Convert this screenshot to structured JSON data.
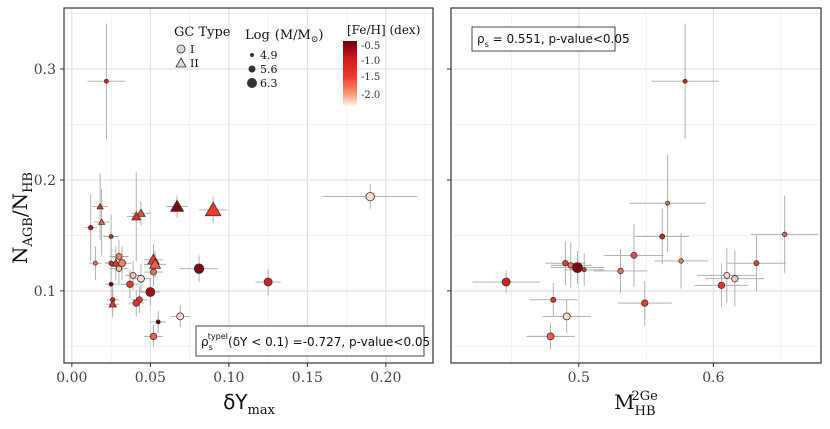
{
  "chart_data": [
    {
      "type": "scatter",
      "id": "left",
      "xlabel": "δY",
      "xlabel_sub": "max",
      "ylabel": "N",
      "ylabel_sub1": "AGB",
      "ylabel_mid": "/N",
      "ylabel_sub2": "HB",
      "xlim": [
        -0.005,
        0.23
      ],
      "ylim": [
        0.035,
        0.355
      ],
      "xticks": [
        "0.00",
        "0.05",
        "0.10",
        "0.15",
        "0.20"
      ],
      "xtick_values": [
        0,
        0.05,
        0.1,
        0.15,
        0.2
      ],
      "yticks": [
        "0.1",
        "0.2",
        "0.3"
      ],
      "ytick_values": [
        0.1,
        0.2,
        0.3
      ],
      "grid": true,
      "annotation": {
        "rho": "ρ",
        "rho_sub": "s",
        "rho_sup": "typeI",
        "text": "(δY < 0.1) =-0.727, p-value<0.05"
      },
      "legend": {
        "gc_title": "GC Type",
        "gc_items": [
          "I",
          "II"
        ],
        "mass_title": "Log",
        "mass_unit": "(M/M",
        "mass_unit_sun": "⊙",
        "mass_unit_close": ")",
        "mass_items": [
          "4.9",
          "5.6",
          "6.3"
        ],
        "feh_title": "[Fe/H] (dex)",
        "feh_ticks": [
          "-0.5",
          "-1.0",
          "-1.5",
          "-2.0"
        ],
        "placement": "top"
      },
      "points": [
        {
          "x": 0.022,
          "y": 0.289,
          "type": "I",
          "logm": 4.9,
          "feh": -1.1,
          "xerr": 0.012,
          "yerr": 0.052
        },
        {
          "x": 0.19,
          "y": 0.185,
          "type": "I",
          "logm": 5.8,
          "feh": -2.3,
          "xerr": 0.03,
          "yerr": 0.011
        },
        {
          "x": 0.09,
          "y": 0.173,
          "type": "II",
          "logm": 6.4,
          "feh": -1.5,
          "xerr": 0.009,
          "yerr": 0.012
        },
        {
          "x": 0.067,
          "y": 0.176,
          "type": "II",
          "logm": 6.0,
          "feh": -0.6,
          "xerr": 0.007,
          "yerr": 0.01
        },
        {
          "x": 0.044,
          "y": 0.17,
          "type": "II",
          "logm": 5.3,
          "feh": -1.6,
          "xerr": 0.006,
          "yerr": 0.011
        },
        {
          "x": 0.041,
          "y": 0.167,
          "type": "II",
          "logm": 5.4,
          "feh": -1.3,
          "xerr": 0.006,
          "yerr": 0.04
        },
        {
          "x": 0.019,
          "y": 0.162,
          "type": "II",
          "logm": 5.0,
          "feh": -1.7,
          "xerr": 0.005,
          "yerr": 0.03
        },
        {
          "x": 0.018,
          "y": 0.176,
          "type": "II",
          "logm": 5.0,
          "feh": -1.3,
          "xerr": 0.005,
          "yerr": 0.03
        },
        {
          "x": 0.012,
          "y": 0.157,
          "type": "I",
          "logm": 5.0,
          "feh": -0.9,
          "xerr": 0.004,
          "yerr": 0.03
        },
        {
          "x": 0.025,
          "y": 0.149,
          "type": "I",
          "logm": 4.9,
          "feh": -1.2,
          "xerr": 0.005,
          "yerr": 0.02
        },
        {
          "x": 0.052,
          "y": 0.128,
          "type": "II",
          "logm": 5.8,
          "feh": -1.5,
          "xerr": 0.006,
          "yerr": 0.014
        },
        {
          "x": 0.053,
          "y": 0.124,
          "type": "II",
          "logm": 5.7,
          "feh": -1.7,
          "xerr": 0.007,
          "yerr": 0.012
        },
        {
          "x": 0.028,
          "y": 0.125,
          "type": "II",
          "logm": 5.3,
          "feh": -1.4,
          "xerr": 0.007,
          "yerr": 0.015
        },
        {
          "x": 0.015,
          "y": 0.125,
          "type": "I",
          "logm": 4.9,
          "feh": -1.8,
          "xerr": 0.004,
          "yerr": 0.015
        },
        {
          "x": 0.03,
          "y": 0.131,
          "type": "I",
          "logm": 5.3,
          "feh": -1.9,
          "xerr": 0.006,
          "yerr": 0.015
        },
        {
          "x": 0.032,
          "y": 0.125,
          "type": "I",
          "logm": 5.5,
          "feh": -1.9,
          "xerr": 0.006,
          "yerr": 0.015
        },
        {
          "x": 0.03,
          "y": 0.12,
          "type": "I",
          "logm": 5.2,
          "feh": -2.2,
          "xerr": 0.006,
          "yerr": 0.015
        },
        {
          "x": 0.025,
          "y": 0.125,
          "type": "I",
          "logm": 5.0,
          "feh": -1.2,
          "xerr": 0.004,
          "yerr": 0.012
        },
        {
          "x": 0.039,
          "y": 0.114,
          "type": "I",
          "logm": 5.3,
          "feh": -2.2,
          "xerr": 0.005,
          "yerr": 0.013
        },
        {
          "x": 0.044,
          "y": 0.111,
          "type": "I",
          "logm": 5.5,
          "feh": -2.3,
          "xerr": 0.006,
          "yerr": 0.013
        },
        {
          "x": 0.037,
          "y": 0.106,
          "type": "I",
          "logm": 5.4,
          "feh": -1.5,
          "xerr": 0.006,
          "yerr": 0.013
        },
        {
          "x": 0.052,
          "y": 0.117,
          "type": "I",
          "logm": 5.3,
          "feh": -1.8,
          "xerr": 0.006,
          "yerr": 0.013
        },
        {
          "x": 0.081,
          "y": 0.12,
          "type": "I",
          "logm": 6.0,
          "feh": -0.6,
          "xerr": 0.012,
          "yerr": 0.012
        },
        {
          "x": 0.125,
          "y": 0.108,
          "type": "I",
          "logm": 5.7,
          "feh": -1.1,
          "xerr": 0.008,
          "yerr": 0.012
        },
        {
          "x": 0.05,
          "y": 0.099,
          "type": "I",
          "logm": 5.9,
          "feh": -0.8,
          "xerr": 0.006,
          "yerr": 0.012
        },
        {
          "x": 0.043,
          "y": 0.092,
          "type": "I",
          "logm": 5.3,
          "feh": -1.5,
          "xerr": 0.005,
          "yerr": 0.012
        },
        {
          "x": 0.041,
          "y": 0.089,
          "type": "I",
          "logm": 5.4,
          "feh": -1.4,
          "xerr": 0.005,
          "yerr": 0.012
        },
        {
          "x": 0.025,
          "y": 0.106,
          "type": "I",
          "logm": 4.9,
          "feh": -0.6,
          "xerr": 0.004,
          "yerr": 0.012
        },
        {
          "x": 0.026,
          "y": 0.092,
          "type": "I",
          "logm": 5.0,
          "feh": -1.2,
          "xerr": 0.004,
          "yerr": 0.012
        },
        {
          "x": 0.026,
          "y": 0.088,
          "type": "II",
          "logm": 5.2,
          "feh": -1.4,
          "xerr": 0.004,
          "yerr": 0.012
        },
        {
          "x": 0.055,
          "y": 0.072,
          "type": "I",
          "logm": 4.9,
          "feh": -0.5,
          "xerr": 0.005,
          "yerr": 0.01
        },
        {
          "x": 0.069,
          "y": 0.077,
          "type": "I",
          "logm": 5.5,
          "feh": -2.3,
          "xerr": 0.006,
          "yerr": 0.01
        },
        {
          "x": 0.052,
          "y": 0.059,
          "type": "I",
          "logm": 5.4,
          "feh": -1.7,
          "xerr": 0.006,
          "yerr": 0.01
        }
      ]
    },
    {
      "type": "scatter",
      "id": "right",
      "xlabel": "M",
      "xlabel_sub": "HB",
      "xlabel_sup": "2Ge",
      "xlim": [
        0.405,
        0.68
      ],
      "ylim": [
        0.035,
        0.355
      ],
      "xticks": [
        "0.5",
        "0.6"
      ],
      "xtick_values": [
        0.5,
        0.6
      ],
      "grid": true,
      "annotation": {
        "rho": "ρ",
        "rho_sub": "s",
        "text": " = 0.551, p-value<0.05"
      },
      "points": [
        {
          "x": 0.579,
          "y": 0.289,
          "type": "I",
          "logm": 4.9,
          "feh": -1.1,
          "xerr": 0.025,
          "yerr": 0.052
        },
        {
          "x": 0.566,
          "y": 0.179,
          "type": "I",
          "logm": 4.9,
          "feh": -1.7,
          "xerr": 0.028,
          "yerr": 0.044
        },
        {
          "x": 0.653,
          "y": 0.151,
          "type": "I",
          "logm": 5.0,
          "feh": -1.7,
          "xerr": 0.025,
          "yerr": 0.035
        },
        {
          "x": 0.562,
          "y": 0.149,
          "type": "I",
          "logm": 5.1,
          "feh": -1.1,
          "xerr": 0.02,
          "yerr": 0.025
        },
        {
          "x": 0.541,
          "y": 0.132,
          "type": "I",
          "logm": 5.3,
          "feh": -1.6,
          "xerr": 0.022,
          "yerr": 0.028
        },
        {
          "x": 0.576,
          "y": 0.127,
          "type": "I",
          "logm": 5.0,
          "feh": -1.9,
          "xerr": 0.02,
          "yerr": 0.025
        },
        {
          "x": 0.632,
          "y": 0.125,
          "type": "I",
          "logm": 5.1,
          "feh": -1.5,
          "xerr": 0.022,
          "yerr": 0.025
        },
        {
          "x": 0.49,
          "y": 0.125,
          "type": "I",
          "logm": 5.2,
          "feh": -1.5,
          "xerr": 0.015,
          "yerr": 0.02
        },
        {
          "x": 0.494,
          "y": 0.123,
          "type": "I",
          "logm": 5.2,
          "feh": -1.8,
          "xerr": 0.015,
          "yerr": 0.02
        },
        {
          "x": 0.499,
          "y": 0.121,
          "type": "I",
          "logm": 6.1,
          "feh": -0.6,
          "xerr": 0.02,
          "yerr": 0.015
        },
        {
          "x": 0.504,
          "y": 0.119,
          "type": "I",
          "logm": 4.9,
          "feh": -1.3,
          "xerr": 0.015,
          "yerr": 0.015
        },
        {
          "x": 0.531,
          "y": 0.118,
          "type": "I",
          "logm": 5.2,
          "feh": -1.8,
          "xerr": 0.02,
          "yerr": 0.02
        },
        {
          "x": 0.61,
          "y": 0.114,
          "type": "I",
          "logm": 5.3,
          "feh": -2.3,
          "xerr": 0.022,
          "yerr": 0.025
        },
        {
          "x": 0.616,
          "y": 0.111,
          "type": "I",
          "logm": 5.4,
          "feh": -2.2,
          "xerr": 0.022,
          "yerr": 0.025
        },
        {
          "x": 0.446,
          "y": 0.108,
          "type": "I",
          "logm": 5.7,
          "feh": -1.1,
          "xerr": 0.025,
          "yerr": 0.01
        },
        {
          "x": 0.606,
          "y": 0.105,
          "type": "I",
          "logm": 5.4,
          "feh": -1.4,
          "xerr": 0.02,
          "yerr": 0.02
        },
        {
          "x": 0.481,
          "y": 0.092,
          "type": "I",
          "logm": 5.1,
          "feh": -1.3,
          "xerr": 0.018,
          "yerr": 0.015
        },
        {
          "x": 0.549,
          "y": 0.089,
          "type": "I",
          "logm": 5.4,
          "feh": -1.5,
          "xerr": 0.02,
          "yerr": 0.02
        },
        {
          "x": 0.491,
          "y": 0.077,
          "type": "I",
          "logm": 5.5,
          "feh": -2.3,
          "xerr": 0.018,
          "yerr": 0.015
        },
        {
          "x": 0.479,
          "y": 0.059,
          "type": "I",
          "logm": 5.5,
          "feh": -1.7,
          "xerr": 0.018,
          "yerr": 0.012
        }
      ]
    }
  ]
}
